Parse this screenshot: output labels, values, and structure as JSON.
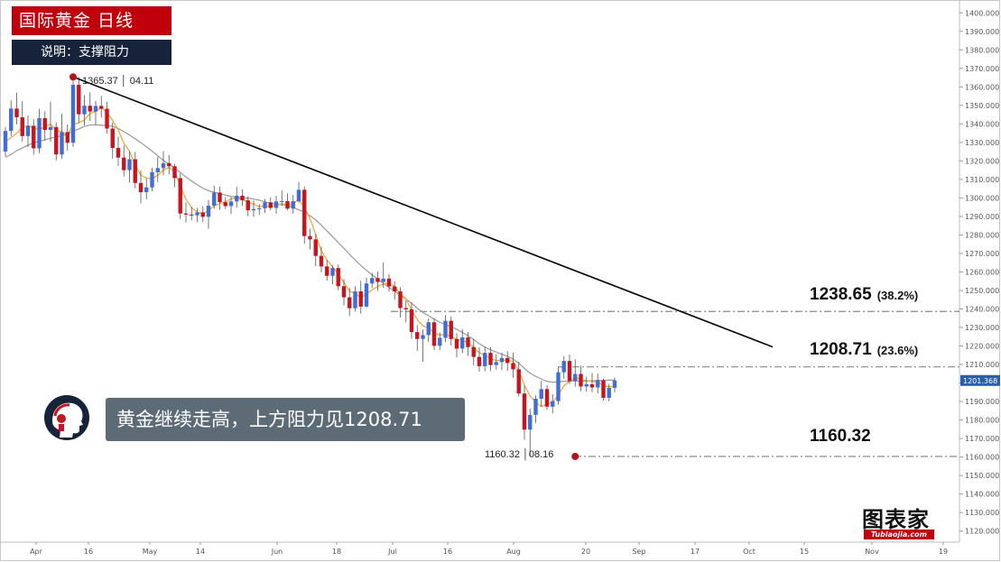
{
  "header": {
    "title": "国际黄金 日线",
    "subtitle": "说明：支撑阻力"
  },
  "callout": {
    "text": "黄金继续走高，上方阻力见1208.71"
  },
  "logo": {
    "main": "图表家",
    "sub": "Tubiaojia.com"
  },
  "levels": [
    {
      "value": "1238.65",
      "pct": "(38.2%)"
    },
    {
      "value": "1208.71",
      "pct": "(23.6%)"
    },
    {
      "value": "1160.32",
      "pct": ""
    }
  ],
  "annotations": {
    "high": {
      "price": "1365.37",
      "date": "04.11"
    },
    "low": {
      "price": "1160.32",
      "date": "08.16"
    }
  },
  "last_price": "1201.368",
  "colors": {
    "up": "#3f6fd6",
    "down": "#c8141e",
    "ma_fast": "#f3a93c",
    "ma_slow": "#a0a0a0",
    "trendline": "#000000",
    "level_line": "#8a8a8a",
    "title_bg": "#c0000a",
    "subtitle_bg": "#16233a",
    "callout_bg": "#5d6b77",
    "price_tag_bg": "#2a5db0"
  },
  "chart_data": {
    "type": "candlestick",
    "ylim": [
      1114,
      1405
    ],
    "y_ticks": [
      1120,
      1130,
      1140,
      1150,
      1160,
      1170,
      1180,
      1190,
      1200,
      1210,
      1220,
      1230,
      1240,
      1250,
      1260,
      1270,
      1280,
      1290,
      1300,
      1310,
      1320,
      1330,
      1340,
      1350,
      1360,
      1370,
      1380,
      1390,
      1400
    ],
    "y_tick_format": "0.000",
    "x_ticks": [
      "Apr",
      "16",
      "May",
      "14",
      "Jun",
      "18",
      "Jul",
      "16",
      "Aug",
      "20",
      "Sep",
      "17",
      "Oct",
      "15",
      "Nov",
      "19"
    ],
    "candles": [
      [
        1325.1,
        1338.3,
        1322.5,
        1336.2
      ],
      [
        1336.2,
        1352.7,
        1333.4,
        1348.3
      ],
      [
        1348.3,
        1356.9,
        1339.8,
        1343.6
      ],
      [
        1343.6,
        1352.3,
        1330.4,
        1333.4
      ],
      [
        1333.4,
        1344.6,
        1327.5,
        1339.0
      ],
      [
        1339.0,
        1342.6,
        1323.4,
        1326.8
      ],
      [
        1326.8,
        1348.2,
        1324.2,
        1343.1
      ],
      [
        1343.1,
        1346.8,
        1330.8,
        1336.7
      ],
      [
        1336.7,
        1352.0,
        1330.4,
        1338.3
      ],
      [
        1338.3,
        1340.9,
        1320.3,
        1323.5
      ],
      [
        1323.5,
        1345.5,
        1321.3,
        1335.6
      ],
      [
        1335.6,
        1339.7,
        1325.5,
        1329.8
      ],
      [
        1329.8,
        1363.6,
        1327.6,
        1361.1
      ],
      [
        1361.1,
        1365.4,
        1340.5,
        1345.2
      ],
      [
        1345.2,
        1355.4,
        1339.2,
        1349.8
      ],
      [
        1349.8,
        1357.0,
        1341.6,
        1346.7
      ],
      [
        1346.7,
        1352.5,
        1339.3,
        1349.7
      ],
      [
        1349.7,
        1355.1,
        1343.4,
        1348.2
      ],
      [
        1348.2,
        1351.9,
        1334.9,
        1337.5
      ],
      [
        1337.5,
        1340.8,
        1321.1,
        1327.0
      ],
      [
        1327.0,
        1333.2,
        1317.3,
        1321.8
      ],
      [
        1321.8,
        1328.4,
        1311.6,
        1315.0
      ],
      [
        1315.0,
        1325.2,
        1308.3,
        1320.9
      ],
      [
        1320.9,
        1324.8,
        1305.3,
        1308.1
      ],
      [
        1308.1,
        1314.9,
        1297.1,
        1303.1
      ],
      [
        1303.1,
        1310.5,
        1299.3,
        1305.7
      ],
      [
        1305.7,
        1316.3,
        1303.6,
        1313.9
      ],
      [
        1313.9,
        1322.1,
        1308.6,
        1316.1
      ],
      [
        1316.1,
        1325.3,
        1312.2,
        1318.8
      ],
      [
        1318.8,
        1323.3,
        1312.7,
        1317.1
      ],
      [
        1317.1,
        1318.5,
        1305.8,
        1310.7
      ],
      [
        1310.7,
        1313.3,
        1288.6,
        1291.6
      ],
      [
        1291.6,
        1297.5,
        1286.7,
        1291.0
      ],
      [
        1291.0,
        1295.1,
        1287.9,
        1290.6
      ],
      [
        1290.6,
        1294.6,
        1286.9,
        1292.2
      ],
      [
        1292.2,
        1295.5,
        1287.0,
        1289.8
      ],
      [
        1289.8,
        1298.9,
        1283.4,
        1295.8
      ],
      [
        1295.8,
        1306.7,
        1294.2,
        1302.9
      ],
      [
        1302.9,
        1306.2,
        1293.6,
        1297.7
      ],
      [
        1297.7,
        1300.4,
        1294.0,
        1295.6
      ],
      [
        1295.6,
        1300.4,
        1291.2,
        1298.1
      ],
      [
        1298.1,
        1305.9,
        1294.7,
        1301.2
      ],
      [
        1301.2,
        1304.6,
        1295.7,
        1298.7
      ],
      [
        1298.7,
        1300.9,
        1290.1,
        1293.3
      ],
      [
        1293.3,
        1298.6,
        1289.8,
        1294.0
      ],
      [
        1294.0,
        1296.6,
        1290.8,
        1294.4
      ],
      [
        1294.4,
        1299.4,
        1292.0,
        1297.6
      ],
      [
        1297.6,
        1300.3,
        1293.4,
        1294.6
      ],
      [
        1294.6,
        1301.0,
        1291.4,
        1298.1
      ],
      [
        1298.1,
        1304.1,
        1295.7,
        1298.3
      ],
      [
        1298.3,
        1302.4,
        1293.3,
        1294.2
      ],
      [
        1294.2,
        1301.6,
        1291.5,
        1298.2
      ],
      [
        1298.2,
        1308.7,
        1297.4,
        1304.4
      ],
      [
        1304.4,
        1306.2,
        1275.3,
        1279.4
      ],
      [
        1279.4,
        1283.4,
        1272.1,
        1277.6
      ],
      [
        1277.6,
        1280.5,
        1263.1,
        1268.7
      ],
      [
        1268.7,
        1273.6,
        1259.8,
        1263.0
      ],
      [
        1263.0,
        1266.4,
        1255.4,
        1257.9
      ],
      [
        1257.9,
        1263.6,
        1253.3,
        1262.1
      ],
      [
        1262.1,
        1264.0,
        1250.2,
        1252.3
      ],
      [
        1252.3,
        1256.0,
        1241.9,
        1246.3
      ],
      [
        1246.3,
        1251.3,
        1236.2,
        1240.4
      ],
      [
        1240.4,
        1252.3,
        1238.7,
        1249.5
      ],
      [
        1249.5,
        1255.3,
        1237.5,
        1241.3
      ],
      [
        1241.3,
        1257.0,
        1240.8,
        1253.8
      ],
      [
        1253.8,
        1259.5,
        1251.3,
        1256.7
      ],
      [
        1256.7,
        1260.2,
        1249.8,
        1254.6
      ],
      [
        1254.6,
        1265.2,
        1251.4,
        1256.4
      ],
      [
        1256.4,
        1258.9,
        1249.3,
        1252.2
      ],
      [
        1252.2,
        1254.9,
        1245.0,
        1249.5
      ],
      [
        1249.5,
        1251.8,
        1235.4,
        1240.5
      ],
      [
        1240.5,
        1244.6,
        1232.8,
        1239.8
      ],
      [
        1239.8,
        1243.6,
        1223.9,
        1227.5
      ],
      [
        1227.5,
        1231.3,
        1217.4,
        1223.8
      ],
      [
        1223.8,
        1228.9,
        1211.5,
        1225.9
      ],
      [
        1225.9,
        1235.0,
        1222.2,
        1232.8
      ],
      [
        1232.8,
        1235.1,
        1217.8,
        1220.1
      ],
      [
        1220.1,
        1227.3,
        1217.7,
        1224.4
      ],
      [
        1224.4,
        1236.8,
        1222.1,
        1233.6
      ],
      [
        1233.6,
        1236.0,
        1220.3,
        1223.8
      ],
      [
        1223.8,
        1226.8,
        1213.8,
        1218.6
      ],
      [
        1218.6,
        1229.1,
        1216.2,
        1224.6
      ],
      [
        1224.6,
        1227.5,
        1214.6,
        1219.4
      ],
      [
        1219.4,
        1223.7,
        1209.5,
        1214.1
      ],
      [
        1214.1,
        1219.3,
        1206.1,
        1209.1
      ],
      [
        1209.1,
        1219.7,
        1206.3,
        1216.3
      ],
      [
        1216.3,
        1219.4,
        1206.4,
        1209.7
      ],
      [
        1209.7,
        1215.5,
        1207.3,
        1211.3
      ],
      [
        1211.3,
        1216.5,
        1206.9,
        1213.5
      ],
      [
        1213.5,
        1217.2,
        1206.6,
        1210.8
      ],
      [
        1210.8,
        1216.3,
        1202.8,
        1207.4
      ],
      [
        1207.4,
        1211.4,
        1192.7,
        1194.3
      ],
      [
        1194.3,
        1198.5,
        1169.4,
        1174.8
      ],
      [
        1174.8,
        1186.2,
        1160.3,
        1182.8
      ],
      [
        1182.8,
        1193.3,
        1178.4,
        1191.5
      ],
      [
        1191.5,
        1201.2,
        1187.1,
        1196.7
      ],
      [
        1196.7,
        1198.8,
        1185.6,
        1187.2
      ],
      [
        1187.2,
        1193.9,
        1183.6,
        1190.2
      ],
      [
        1190.2,
        1208.6,
        1188.3,
        1205.8
      ],
      [
        1205.8,
        1214.5,
        1202.3,
        1211.9
      ],
      [
        1211.9,
        1215.3,
        1199.5,
        1201.0
      ],
      [
        1201.0,
        1212.7,
        1198.0,
        1204.9
      ],
      [
        1204.9,
        1209.3,
        1195.5,
        1198.1
      ],
      [
        1198.1,
        1203.4,
        1195.4,
        1199.3
      ],
      [
        1199.3,
        1205.4,
        1195.1,
        1197.6
      ],
      [
        1197.6,
        1205.1,
        1194.4,
        1201.5
      ],
      [
        1201.5,
        1202.3,
        1190.4,
        1192.0
      ],
      [
        1192.0,
        1199.5,
        1190.1,
        1197.4
      ],
      [
        1197.4,
        1202.9,
        1195.0,
        1201.4
      ]
    ],
    "ma_fast": [
      1330.4,
      1332.6,
      1335.0,
      1338.1,
      1339.0,
      1337.9,
      1336.9,
      1338.5,
      1339.8,
      1336.5,
      1335.7,
      1334.0,
      1339.7,
      1340.6,
      1342.0,
      1345.7,
      1346.7,
      1348.8,
      1346.1,
      1341.9,
      1336.7,
      1329.5,
      1325.2,
      1317.7,
      1312.3,
      1310.8,
      1310.4,
      1312.3,
      1315.0,
      1316.5,
      1314.2,
      1306.5,
      1299.3,
      1294.7,
      1292.4,
      1291.3,
      1293.3,
      1295.7,
      1296.9,
      1297.8,
      1299.4,
      1300.1,
      1299.1,
      1297.8,
      1296.6,
      1295.3,
      1295.8,
      1295.2,
      1296.0,
      1296.9,
      1296.0,
      1296.8,
      1299.2,
      1294.7,
      1288.8,
      1280.1,
      1271.4,
      1266.4,
      1262.7,
      1258.8,
      1254.4,
      1249.5,
      1248.5,
      1246.1,
      1248.0,
      1250.4,
      1252.1,
      1253.5,
      1254.0,
      1252.1,
      1248.2,
      1245.6,
      1239.3,
      1234.2,
      1230.9,
      1229.6,
      1227.2,
      1225.8,
      1226.4,
      1225.1,
      1223.6,
      1222.9,
      1221.9,
      1219.4,
      1216.3,
      1215.1,
      1213.1,
      1212.1,
      1212.1,
      1212.3,
      1211.6,
      1206.9,
      1198.8,
      1193.0,
      1189.6,
      1187.2,
      1188.6,
      1189.6,
      1193.3,
      1198.5,
      1200.9,
      1202.8,
      1202.0,
      1201.3,
      1200.8,
      1200.6,
      1198.5,
      1198.0,
      1198.1
    ],
    "ma_slow": [
      1322.0,
      1323.5,
      1325.6,
      1327.0,
      1328.5,
      1329.8,
      1330.5,
      1331.4,
      1332.3,
      1332.9,
      1333.6,
      1334.4,
      1336.2,
      1337.2,
      1338.7,
      1339.4,
      1339.5,
      1339.3,
      1339.1,
      1338.7,
      1337.6,
      1335.8,
      1334.0,
      1332.0,
      1329.9,
      1327.6,
      1325.3,
      1322.7,
      1320.3,
      1318.1,
      1316.2,
      1313.7,
      1311.3,
      1309.1,
      1307.1,
      1305.2,
      1303.9,
      1303.1,
      1302.4,
      1301.5,
      1300.8,
      1300.4,
      1300.1,
      1299.8,
      1299.4,
      1298.8,
      1297.9,
      1297.2,
      1296.7,
      1296.4,
      1295.9,
      1294.8,
      1293.6,
      1292.3,
      1290.4,
      1288.1,
      1285.3,
      1282.1,
      1279.0,
      1275.9,
      1272.8,
      1269.6,
      1266.4,
      1263.5,
      1260.9,
      1258.4,
      1256.2,
      1253.9,
      1251.6,
      1249.6,
      1247.4,
      1245.3,
      1243.1,
      1240.4,
      1238.1,
      1236.4,
      1234.5,
      1232.8,
      1231.6,
      1230.4,
      1229.0,
      1227.4,
      1225.5,
      1223.5,
      1221.2,
      1219.4,
      1217.9,
      1216.7,
      1215.5,
      1214.4,
      1212.9,
      1210.6,
      1207.9,
      1205.3,
      1203.6,
      1202.1,
      1200.9,
      1200.4,
      1200.6,
      1200.9,
      1201.0,
      1201.2,
      1201.0,
      1201.0,
      1201.2,
      1201.4,
      1201.3,
      1201.6,
      1201.6
    ],
    "trendline": {
      "from": [
        12,
        1365.37
      ],
      "to": [
        136,
        1219.5
      ]
    },
    "levels": [
      1238.65,
      1208.71,
      1160.32
    ],
    "last_price": 1201.368
  }
}
